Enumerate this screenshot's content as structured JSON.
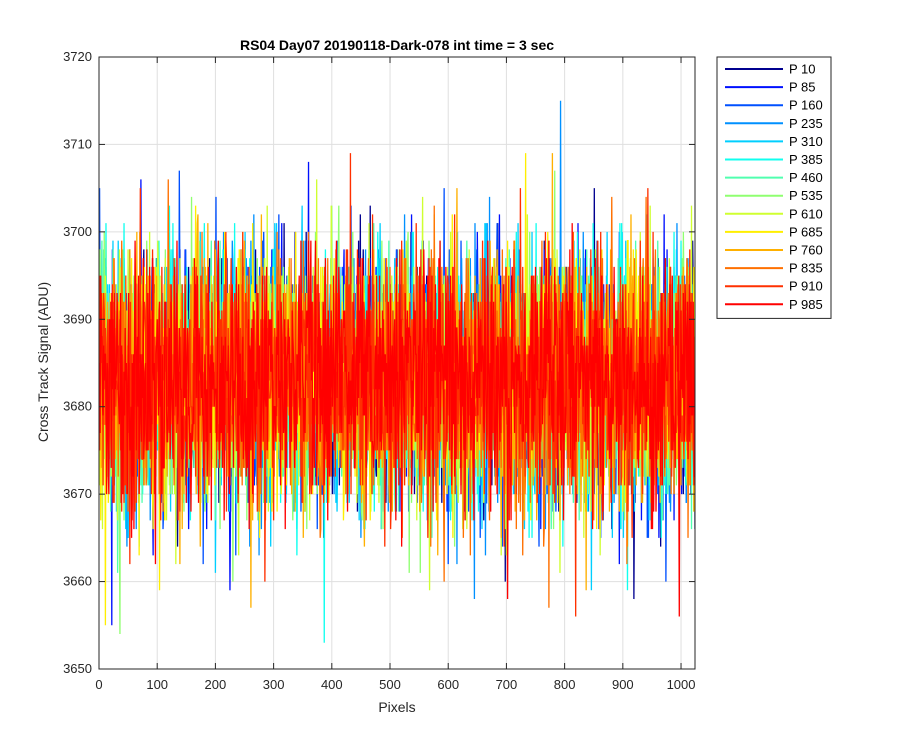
{
  "chart_data": {
    "type": "line",
    "title": "RS04 Day07 20190118-Dark-078 int time = 3 sec",
    "xlabel": "Pixels",
    "ylabel": "Cross Track Signal (ADU)",
    "xlim": [
      0,
      1024
    ],
    "ylim": [
      3650,
      3720
    ],
    "xticks": [
      0,
      100,
      200,
      300,
      400,
      500,
      600,
      700,
      800,
      900,
      1000
    ],
    "yticks": [
      3650,
      3660,
      3670,
      3680,
      3690,
      3700,
      3710,
      3720
    ],
    "grid": true,
    "legend_position": "outside-top-right",
    "noise_model": {
      "mean": 3683,
      "std_dev": 7,
      "points_per_series": 1024
    },
    "series": [
      {
        "name": "P 10",
        "color": "#00008f",
        "min": 3658,
        "max": 3705
      },
      {
        "name": "P 85",
        "color": "#0010ff",
        "min": 3655,
        "max": 3708
      },
      {
        "name": "P 160",
        "color": "#0050ff",
        "min": 3660,
        "max": 3707
      },
      {
        "name": "P 235",
        "color": "#0090ff",
        "min": 3658,
        "max": 3715
      },
      {
        "name": "P 310",
        "color": "#00cfff",
        "min": 3659,
        "max": 3703
      },
      {
        "name": "P 385",
        "color": "#10ffef",
        "min": 3653,
        "max": 3703
      },
      {
        "name": "P 460",
        "color": "#50ffaf",
        "min": 3661,
        "max": 3701
      },
      {
        "name": "P 535",
        "color": "#8fff70",
        "min": 3654,
        "max": 3707
      },
      {
        "name": "P 610",
        "color": "#cfff30",
        "min": 3659,
        "max": 3706
      },
      {
        "name": "P 685",
        "color": "#ffef00",
        "min": 3655,
        "max": 3709
      },
      {
        "name": "P 760",
        "color": "#ffb000",
        "min": 3657,
        "max": 3709
      },
      {
        "name": "P 835",
        "color": "#ff7000",
        "min": 3657,
        "max": 3706
      },
      {
        "name": "P 910",
        "color": "#ff3000",
        "min": 3656,
        "max": 3709
      },
      {
        "name": "P 985",
        "color": "#ff0000",
        "min": 3656,
        "max": 3701
      }
    ]
  }
}
